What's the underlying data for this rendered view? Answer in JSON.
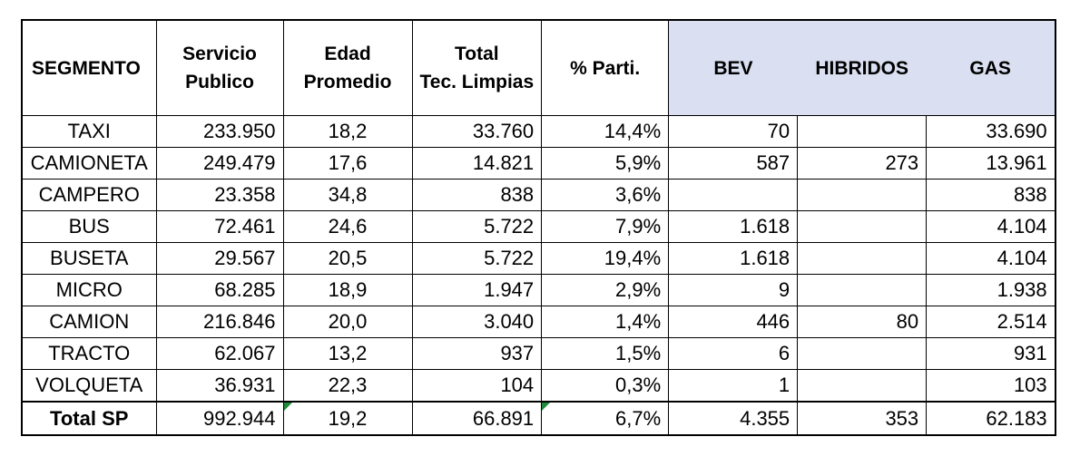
{
  "table": {
    "headers": {
      "segmento": "SEGMENTO",
      "servicio_line1": "Servicio",
      "servicio_line2": "Publico",
      "edad_line1": "Edad",
      "edad_line2": "Promedio",
      "total_line1": "Total",
      "total_line2": "Tec. Limpias",
      "parti": "% Parti.",
      "bev": "BEV",
      "hibridos": "HIBRIDOS",
      "gas": "GAS"
    },
    "rows": [
      {
        "segmento": "TAXI",
        "servicio": "233.950",
        "edad": "18,2",
        "total": "33.760",
        "parti": "14,4%",
        "bev": "70",
        "hibridos": "",
        "gas": "33.690"
      },
      {
        "segmento": "CAMIONETA",
        "servicio": "249.479",
        "edad": "17,6",
        "total": "14.821",
        "parti": "5,9%",
        "bev": "587",
        "hibridos": "273",
        "gas": "13.961"
      },
      {
        "segmento": "CAMPERO",
        "servicio": "23.358",
        "edad": "34,8",
        "total": "838",
        "parti": "3,6%",
        "bev": "",
        "hibridos": "",
        "gas": "838"
      },
      {
        "segmento": "BUS",
        "servicio": "72.461",
        "edad": "24,6",
        "total": "5.722",
        "parti": "7,9%",
        "bev": "1.618",
        "hibridos": "",
        "gas": "4.104"
      },
      {
        "segmento": "BUSETA",
        "servicio": "29.567",
        "edad": "20,5",
        "total": "5.722",
        "parti": "19,4%",
        "bev": "1.618",
        "hibridos": "",
        "gas": "4.104"
      },
      {
        "segmento": "MICRO",
        "servicio": "68.285",
        "edad": "18,9",
        "total": "1.947",
        "parti": "2,9%",
        "bev": "9",
        "hibridos": "",
        "gas": "1.938"
      },
      {
        "segmento": "CAMION",
        "servicio": "216.846",
        "edad": "20,0",
        "total": "3.040",
        "parti": "1,4%",
        "bev": "446",
        "hibridos": "80",
        "gas": "2.514"
      },
      {
        "segmento": "TRACTO",
        "servicio": "62.067",
        "edad": "13,2",
        "total": "937",
        "parti": "1,5%",
        "bev": "6",
        "hibridos": "",
        "gas": "931"
      },
      {
        "segmento": "VOLQUETA",
        "servicio": "36.931",
        "edad": "22,3",
        "total": "104",
        "parti": "0,3%",
        "bev": "1",
        "hibridos": "",
        "gas": "103"
      }
    ],
    "total": {
      "segmento": "Total SP",
      "servicio": "992.944",
      "edad": "19,2",
      "total": "66.891",
      "parti": "6,7%",
      "bev": "4.355",
      "hibridos": "353",
      "gas": "62.183"
    }
  },
  "colors": {
    "header_highlight": "#dae0f1",
    "cell_indicator": "#1f8b3a"
  }
}
